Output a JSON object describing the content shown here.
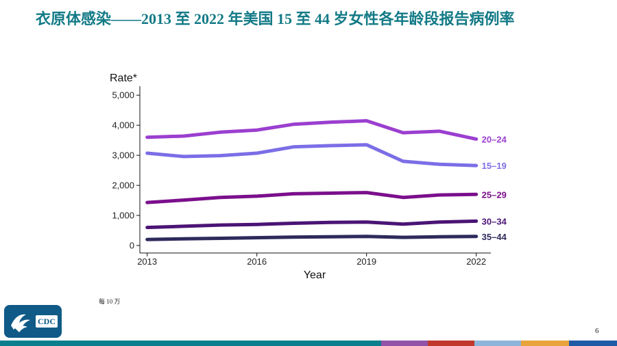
{
  "slide": {
    "title": "衣原体感染——2013 至 2022 年美国 15 至 44 岁女性各年龄段报告病例率",
    "footnote": "每 10 万",
    "page_number": "6",
    "logo_text": "CDC"
  },
  "colors": {
    "title": "#127a86",
    "bottom_bar": [
      "#0a7e8c",
      "#9152a8",
      "#c0392b",
      "#8fb4d9",
      "#e8a33d",
      "#1f5aa6"
    ]
  },
  "chart_data": {
    "type": "line",
    "title": "",
    "xlabel": "Year",
    "ylabel": "Rate*",
    "x": [
      2013,
      2014,
      2015,
      2016,
      2017,
      2018,
      2019,
      2020,
      2021,
      2022
    ],
    "xticks": [
      2013,
      2016,
      2019,
      2022
    ],
    "xlim": [
      2012.8,
      2022.4
    ],
    "yticks": [
      0,
      1000,
      2000,
      3000,
      4000,
      5000
    ],
    "ytick_labels": [
      "0",
      "1,000",
      "2,000",
      "3,000",
      "4,000",
      "5,000"
    ],
    "ylim": [
      -250,
      5300
    ],
    "grid": false,
    "series": [
      {
        "name": "20–24",
        "color": "#9b3fcf",
        "values": [
          3600,
          3640,
          3770,
          3840,
          4030,
          4100,
          4150,
          3750,
          3800,
          3540
        ]
      },
      {
        "name": "15–19",
        "color": "#7b6ee6",
        "values": [
          3070,
          2960,
          2990,
          3070,
          3280,
          3320,
          3350,
          2800,
          2700,
          2660
        ]
      },
      {
        "name": "25–29",
        "color": "#7b0f8c",
        "values": [
          1430,
          1510,
          1600,
          1640,
          1720,
          1740,
          1760,
          1600,
          1680,
          1700
        ]
      },
      {
        "name": "30–34",
        "color": "#4b1475",
        "values": [
          600,
          640,
          680,
          700,
          740,
          770,
          780,
          710,
          780,
          810
        ]
      },
      {
        "name": "35–44",
        "color": "#2e2a5c",
        "values": [
          200,
          220,
          240,
          260,
          280,
          290,
          300,
          270,
          290,
          300
        ]
      }
    ]
  }
}
